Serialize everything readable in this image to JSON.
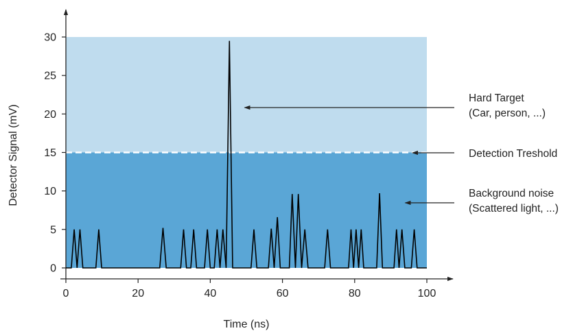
{
  "chart_data": {
    "type": "line",
    "title": "",
    "xlabel": "Time (ns)",
    "ylabel": "Detector Signal (mV)",
    "xlim": [
      0,
      100
    ],
    "ylim": [
      0,
      30
    ],
    "xticks": [
      0,
      20,
      40,
      60,
      80,
      100
    ],
    "yticks": [
      0,
      5,
      10,
      15,
      20,
      25,
      30
    ],
    "grid": false,
    "threshold": 15,
    "regions": [
      {
        "name": "background-noise",
        "y_range": [
          0,
          15
        ],
        "color": "#5aa6d6"
      },
      {
        "name": "hard-target",
        "y_range": [
          15,
          30
        ],
        "color": "#bfdcee"
      }
    ],
    "series": [
      {
        "color": "#000000",
        "x": [
          0,
          1.5,
          2.3,
          3.1,
          3.9,
          4.7,
          8.3,
          9.1,
          9.9,
          26,
          26.9,
          27.8,
          31.8,
          32.6,
          33.4,
          34.6,
          35.4,
          36.2,
          38.4,
          39.2,
          40,
          41.1,
          41.9,
          42.7,
          43.5,
          44.4,
          45.3,
          46.2,
          51.3,
          52.1,
          52.9,
          56.1,
          56.9,
          57.7,
          58.6,
          59.4,
          61.9,
          62.7,
          63.6,
          64.4,
          65.3,
          66.2,
          67.1,
          71.7,
          72.5,
          73.3,
          78.3,
          79,
          79.7,
          80.4,
          81.1,
          81.8,
          82.5,
          86.1,
          86.9,
          87.7,
          90.9,
          91.6,
          92.3,
          93.1,
          93.9,
          95.7,
          96.5,
          97.3,
          100
        ],
        "y": [
          0,
          0,
          5,
          0,
          5,
          0,
          0,
          5,
          0,
          0,
          5.2,
          0,
          0,
          5,
          0,
          0,
          5,
          0,
          0,
          5,
          0,
          0,
          5,
          0,
          5,
          0,
          29.5,
          0,
          0,
          5,
          0,
          0,
          5.1,
          0,
          6.6,
          0,
          0,
          9.6,
          0,
          9.6,
          0,
          5,
          0,
          0,
          5,
          0,
          0,
          5,
          0,
          5,
          0,
          5,
          0,
          0,
          9.7,
          0,
          0,
          5,
          0,
          5,
          0,
          0,
          5,
          0,
          0
        ]
      }
    ],
    "annotations": [
      {
        "lines": [
          "Hard Target",
          "(Car, person, ...)"
        ],
        "arrow_to": [
          49.5,
          20.5
        ]
      },
      {
        "lines": [
          "Detection Treshold"
        ],
        "arrow_to": [
          96,
          15
        ]
      },
      {
        "lines": [
          "Background noise",
          "(Scattered light, ...)"
        ],
        "arrow_to": [
          94,
          8.3
        ]
      }
    ]
  }
}
